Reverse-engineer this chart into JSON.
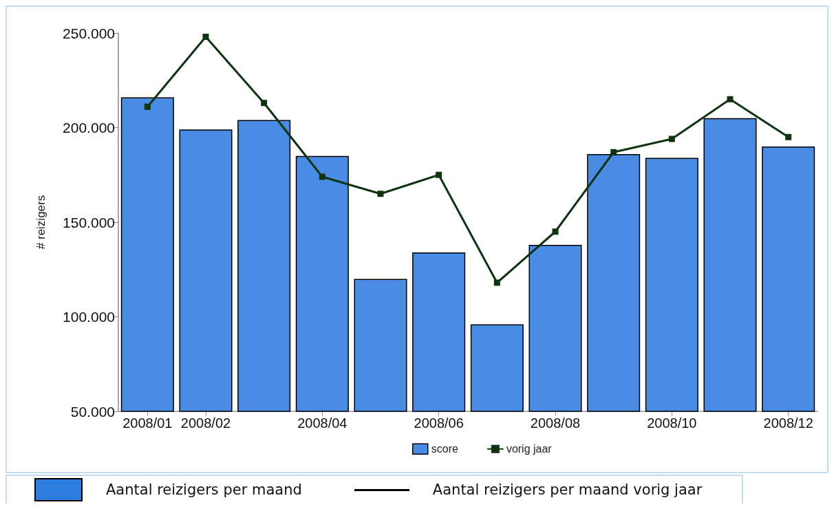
{
  "chart_data": {
    "type": "bar",
    "ylabel": "# reizigers",
    "categories": [
      "2008/01",
      "2008/02",
      null,
      "2008/04",
      null,
      "2008/06",
      null,
      "2008/08",
      null,
      "2008/10",
      null,
      "2008/12"
    ],
    "series": [
      {
        "name": "score",
        "color": "#4a8be3",
        "values": [
          216000,
          199000,
          204000,
          185000,
          120000,
          134000,
          96000,
          138000,
          186000,
          184000,
          205000,
          190000
        ]
      },
      {
        "name": "vorig jaar",
        "type": "line",
        "color": "#0d3311",
        "values": [
          211000,
          248000,
          213000,
          174000,
          165000,
          175000,
          118000,
          145000,
          187000,
          194000,
          215000,
          195000
        ]
      }
    ],
    "ylim": [
      50000,
      250000
    ],
    "yticks": [
      {
        "value": 50000,
        "label": "50.000"
      },
      {
        "value": 100000,
        "label": "100.000"
      },
      {
        "value": 150000,
        "label": "150.000"
      },
      {
        "value": 200000,
        "label": "200.000"
      },
      {
        "value": 250000,
        "label": "250.000"
      }
    ],
    "legend": "bottom",
    "marker": "square",
    "line_style": "solid",
    "annotations": [
      "Aantal reizigers per maand",
      "Aantal reizigers per maand vorig jaar"
    ]
  }
}
